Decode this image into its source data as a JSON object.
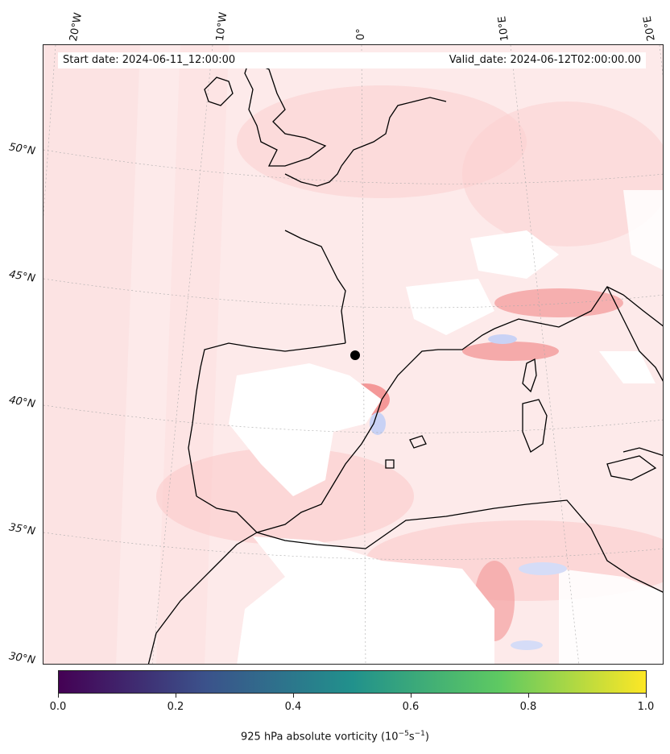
{
  "info": {
    "start_date": "Start date: 2024-06-11_12:00:00",
    "valid_date": "Valid_date: 2024-06-12T02:00:00.00"
  },
  "longitude_labels": [
    "20°W",
    "10°W",
    "0°",
    "10°E",
    "20°E"
  ],
  "latitude_labels": [
    "50°N",
    "45°N",
    "40°N",
    "35°N",
    "30°N"
  ],
  "colorbar": {
    "ticks": [
      "0.0",
      "0.2",
      "0.4",
      "0.6",
      "0.8",
      "1.0"
    ],
    "label_prefix": "925 hPa absolute vorticity (10",
    "label_exp1": "−5",
    "label_mid": "s",
    "label_exp2": "−1",
    "label_suffix": ")",
    "colormap": "viridis",
    "colors": [
      "#440154",
      "#3b528b",
      "#21918c",
      "#5ec962",
      "#fde725"
    ]
  },
  "field_colors": {
    "positive_light": "#fde6e6",
    "positive_mid": "#fbc8c8",
    "positive_strong": "#f28a8a",
    "negative": "#c9d2f5",
    "land_blank": "#ffffff"
  },
  "marker": "black dot"
}
